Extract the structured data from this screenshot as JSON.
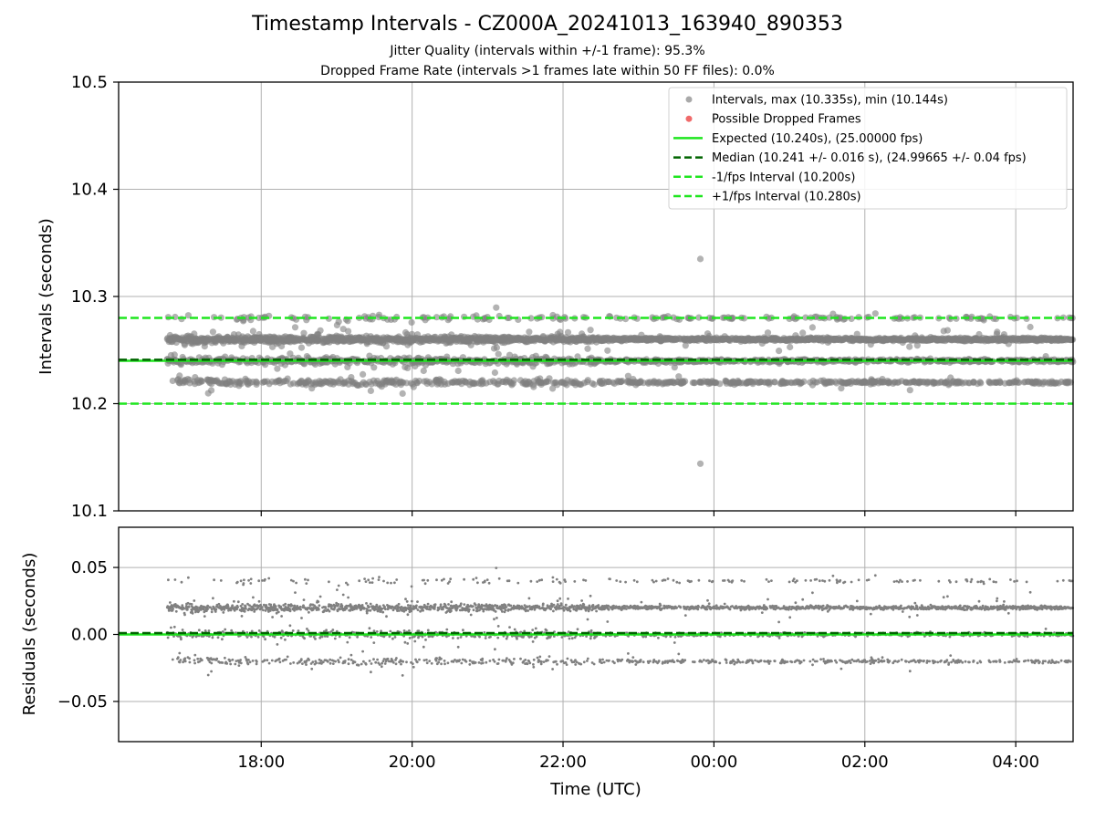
{
  "chart_data": {
    "type": "scatter",
    "title": "Timestamp Intervals - CZ000A_20241013_163940_890353",
    "subtitle_1": "Jitter Quality (intervals within +/-1 frame): 95.3%",
    "subtitle_2": "Dropped Frame Rate (intervals >1 frames late within 50 FF files): 0.0%",
    "xlabel": "Time (UTC)",
    "x_ticks": [
      "18:00",
      "20:00",
      "22:00",
      "00:00",
      "02:00",
      "04:00"
    ],
    "x_tick_hours": [
      18,
      20,
      22,
      24,
      26,
      28
    ],
    "x_range_hours": [
      16.11,
      28.76
    ],
    "top_panel": {
      "ylabel": "Intervals (seconds)",
      "ylim": [
        10.1,
        10.5
      ],
      "y_ticks": [
        "10.1",
        "10.2",
        "10.3",
        "10.4",
        "10.5"
      ],
      "y_tick_values": [
        10.1,
        10.2,
        10.3,
        10.4,
        10.5
      ],
      "grid": true,
      "interval_levels_s": [
        10.22,
        10.24,
        10.26,
        10.28
      ],
      "level_weights": [
        0.2,
        0.25,
        0.5,
        0.05
      ],
      "data_start_hour": 16.75,
      "data_end_hour": 28.76,
      "max_point": {
        "hour": 23.82,
        "value": 10.335
      },
      "min_point": {
        "hour": 23.82,
        "value": 10.144
      },
      "expected_s": 10.24,
      "median_s": 10.241,
      "minus_fps_s": 10.2,
      "plus_fps_s": 10.28,
      "legend_position": "upper right",
      "legend": [
        {
          "label": "Intervals, max (10.335s), min (10.144s)",
          "kind": "marker",
          "color": "#a9a9a9"
        },
        {
          "label": "Possible Dropped Frames",
          "kind": "marker",
          "color": "#f06a6a"
        },
        {
          "label": "Expected (10.240s), (25.00000 fps)",
          "kind": "solid",
          "color": "#1ee61e"
        },
        {
          "label": "Median (10.241 +/- 0.016 s), (24.99665 +/- 0.04 fps)",
          "kind": "dashed",
          "color": "#006400"
        },
        {
          "label": "-1/fps Interval (10.200s)",
          "kind": "dashed",
          "color": "#1ee61e"
        },
        {
          "label": "+1/fps Interval (10.280s)",
          "kind": "dashed",
          "color": "#1ee61e"
        }
      ]
    },
    "bottom_panel": {
      "ylabel": "Residuals (seconds)",
      "ylim": [
        -0.08,
        0.08
      ],
      "y_ticks": [
        "0.05",
        "0.00",
        "−0.05"
      ],
      "y_tick_values": [
        0.05,
        0.0,
        -0.05
      ],
      "grid": true,
      "residual_levels_s": [
        -0.02,
        0.0,
        0.02,
        0.04
      ],
      "zero_line_color": "#1ee61e",
      "median_line_s": 0.001
    },
    "colors": {
      "point": "#808080",
      "expected": "#1ee61e",
      "median": "#006400",
      "grid": "#b0b0b0"
    }
  }
}
